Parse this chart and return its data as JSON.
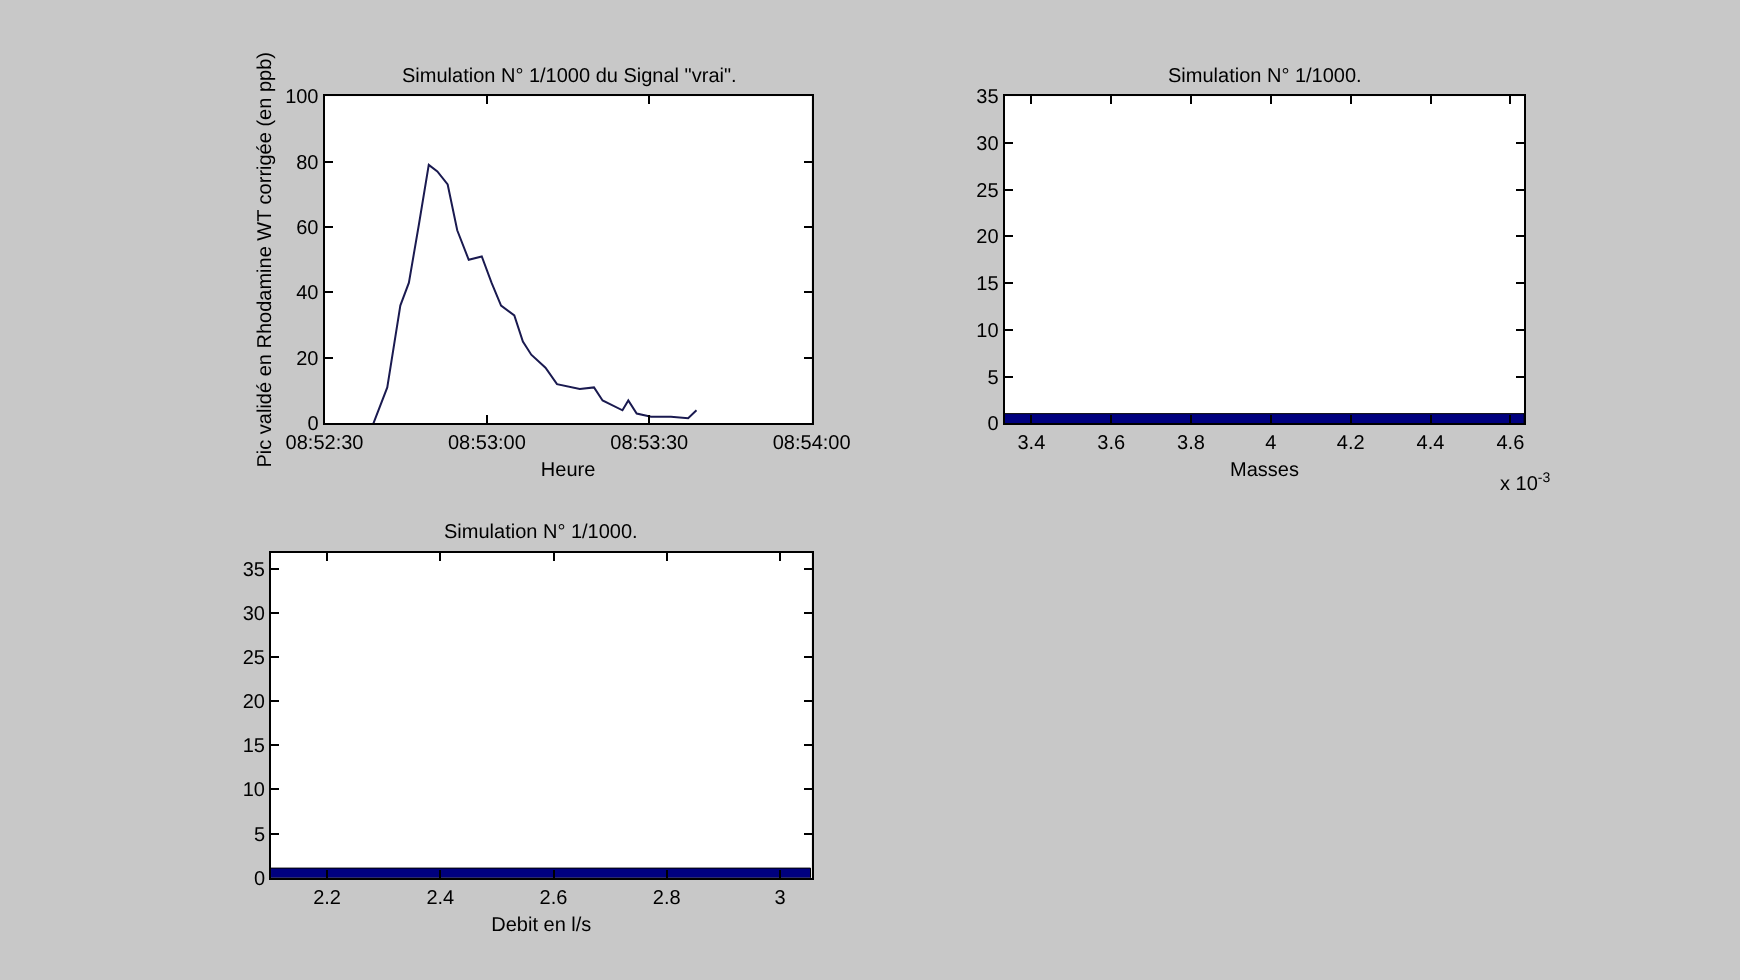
{
  "chart_data": [
    {
      "type": "line",
      "title": "Simulation N° 1/1000 du Signal \"vrai\".",
      "xlabel": "Heure",
      "ylabel": "Pic validé en Rhodamine WT corrigée (en ppb)",
      "x": [
        8.87751,
        8.87822,
        8.87889,
        8.87933,
        8.87985,
        8.88035,
        8.88079,
        8.88132,
        8.88181,
        8.8824,
        8.88307,
        8.88357,
        8.88406,
        8.88474,
        8.88518,
        8.88561,
        8.88634,
        8.88693,
        8.8881,
        8.88883,
        8.88927,
        8.89029,
        8.89059,
        8.89102,
        8.89176,
        8.89278,
        8.89366,
        8.89409
      ],
      "series": [
        {
          "color": "#1a1a50",
          "values": [
            0,
            11,
            36,
            43,
            61,
            79,
            77,
            73,
            59,
            50,
            51,
            43,
            36,
            33,
            25,
            21,
            17,
            12,
            10.5,
            11,
            7,
            4,
            7,
            3,
            2,
            2,
            1.6,
            4
          ]
        }
      ],
      "xlim": [
        8.875,
        8.9
      ],
      "xticks": [
        {
          "value": 8.875,
          "label": "08:52:30"
        },
        {
          "value": 8.883333,
          "label": "08:53:00"
        },
        {
          "value": 8.891667,
          "label": "08:53:30"
        },
        {
          "value": 8.9,
          "label": "08:54:00"
        }
      ],
      "ylim": [
        0,
        100
      ],
      "yticks": [
        0,
        20,
        40,
        60,
        80,
        100
      ]
    },
    {
      "type": "histogram",
      "title": "Simulation N° 1/1000.",
      "xlabel": "Masses",
      "annotations": [
        "x 10$^{-3}$"
      ],
      "bins": [
        3.333,
        4.635
      ],
      "values": [
        1
      ],
      "color": "#00007f",
      "xlim": [
        3.333,
        4.635
      ],
      "xticks": [
        3.4,
        3.6,
        3.8,
        4,
        4.2,
        4.4,
        4.6
      ],
      "ylim": [
        0,
        35
      ],
      "yticks": [
        0,
        5,
        10,
        15,
        20,
        25,
        30,
        35
      ]
    },
    {
      "type": "histogram",
      "title": "Simulation N° 1/1000.",
      "xlabel": "Debit en l/s",
      "bins": [
        2.101,
        3.056
      ],
      "values": [
        1
      ],
      "color": "#00007f",
      "xlim": [
        2.101,
        3.056
      ],
      "xticks": [
        2.2,
        2.4,
        2.6,
        2.8,
        3
      ],
      "ylim": [
        0,
        36.8
      ],
      "yticks": [
        0,
        5,
        10,
        15,
        20,
        25,
        30,
        35
      ]
    }
  ]
}
